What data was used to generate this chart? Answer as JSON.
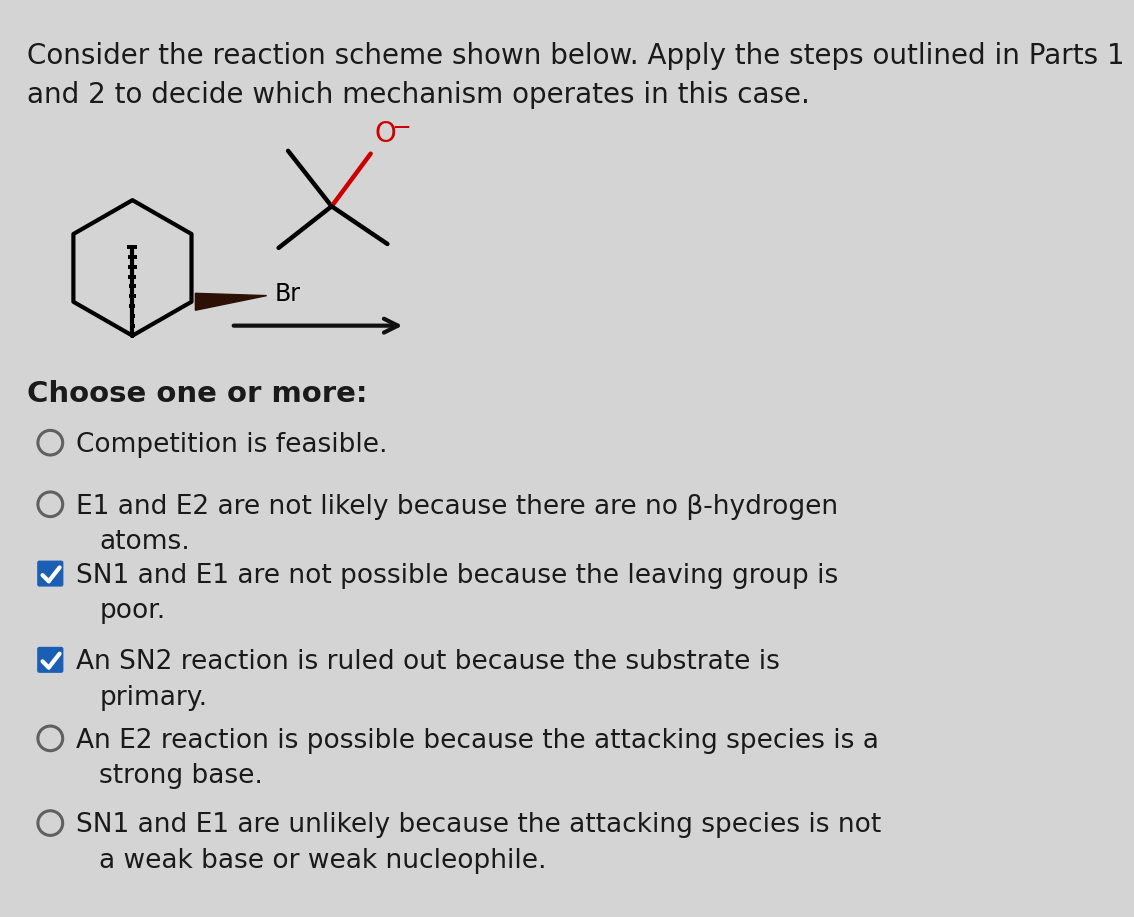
{
  "bg_color": "#d4d4d4",
  "title_line1": "Consider the reaction scheme shown below. Apply the steps outlined in Parts 1",
  "title_line2": "and 2 to decide which mechanism operates in this case.",
  "choose_label": "Choose one or more:",
  "options": [
    {
      "text": "Competition is feasible.",
      "checked": false,
      "line2": ""
    },
    {
      "text": "E1 and E2 are not likely because there are no β-hydrogen",
      "checked": false,
      "line2": "atoms."
    },
    {
      "text": "SN1 and E1 are not possible because the leaving group is",
      "checked": true,
      "line2": "poor."
    },
    {
      "text": "An SN2 reaction is ruled out because the substrate is",
      "checked": true,
      "line2": "primary."
    },
    {
      "text": "An E2 reaction is possible because the attacking species is a",
      "checked": false,
      "line2": "strong base."
    },
    {
      "text": "SN1 and E1 are unlikely because the attacking species is not",
      "checked": false,
      "line2": "a weak base or weak nucleophile."
    }
  ],
  "sn_subscripts": [
    {
      "option": 2,
      "text": "SN1",
      "sn": "N",
      "sub": "1"
    },
    {
      "option": 3,
      "text": "SN2",
      "sn": "N",
      "sub": "2"
    },
    {
      "option": 5,
      "text": "SN1",
      "sn": "N",
      "sub": "1"
    }
  ],
  "check_color": "#1a5fb4",
  "text_color": "#1a1a1a",
  "arrow_color": "#111111",
  "title_fontsize": 20,
  "body_fontsize": 19
}
